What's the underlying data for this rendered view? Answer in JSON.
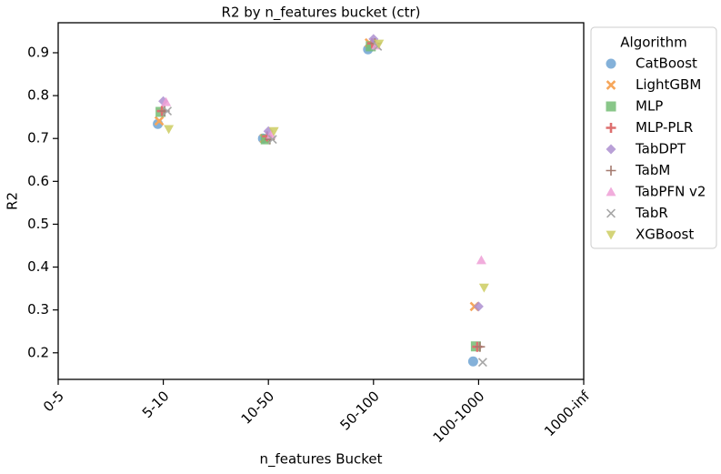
{
  "chart_data": {
    "type": "scatter",
    "title": "R2 by n_features bucket (ctr)",
    "xlabel": "n_features Bucket",
    "ylabel": "R2",
    "categories": [
      "0-5",
      "5-10",
      "10-50",
      "50-100",
      "100-1000",
      "1000-inf"
    ],
    "ylim": [
      0.138,
      0.97
    ],
    "yticks": [
      0.2,
      0.3,
      0.4,
      0.5,
      0.6,
      0.7,
      0.8,
      0.9
    ],
    "legend_title": "Algorithm",
    "legend": "outside upper right",
    "series": [
      {
        "name": "CatBoost",
        "color": "#6fa3d2",
        "marker": "circle",
        "values": [
          null,
          0.734,
          0.7,
          0.908,
          0.18,
          null
        ]
      },
      {
        "name": "LightGBM",
        "color": "#f6a65a",
        "marker": "x",
        "values": [
          null,
          0.741,
          0.7,
          0.923,
          0.308,
          null
        ]
      },
      {
        "name": "MLP",
        "color": "#74bd74",
        "marker": "square",
        "values": [
          null,
          0.762,
          0.698,
          0.915,
          0.215,
          null
        ]
      },
      {
        "name": "MLP-PLR",
        "color": "#dd6f6f",
        "marker": "plus",
        "values": [
          null,
          0.764,
          0.705,
          0.922,
          0.214,
          null
        ]
      },
      {
        "name": "TabDPT",
        "color": "#ad8fd0",
        "marker": "diamond",
        "values": [
          null,
          0.787,
          0.717,
          0.932,
          0.308,
          null
        ]
      },
      {
        "name": "TabM",
        "color": "#a57b70",
        "marker": "thinplus",
        "values": [
          null,
          0.764,
          0.698,
          0.922,
          0.214,
          null
        ]
      },
      {
        "name": "TabPFN v2",
        "color": "#ee9fd6",
        "marker": "triangle",
        "values": [
          null,
          0.785,
          0.709,
          0.917,
          0.416,
          null
        ]
      },
      {
        "name": "TabR",
        "color": "#a6a6a6",
        "marker": "thinx",
        "values": [
          null,
          0.764,
          0.698,
          0.915,
          0.178,
          null
        ]
      },
      {
        "name": "XGBoost",
        "color": "#cccc62",
        "marker": "triangledown",
        "values": [
          null,
          0.722,
          0.717,
          0.921,
          0.352,
          null
        ]
      }
    ]
  }
}
